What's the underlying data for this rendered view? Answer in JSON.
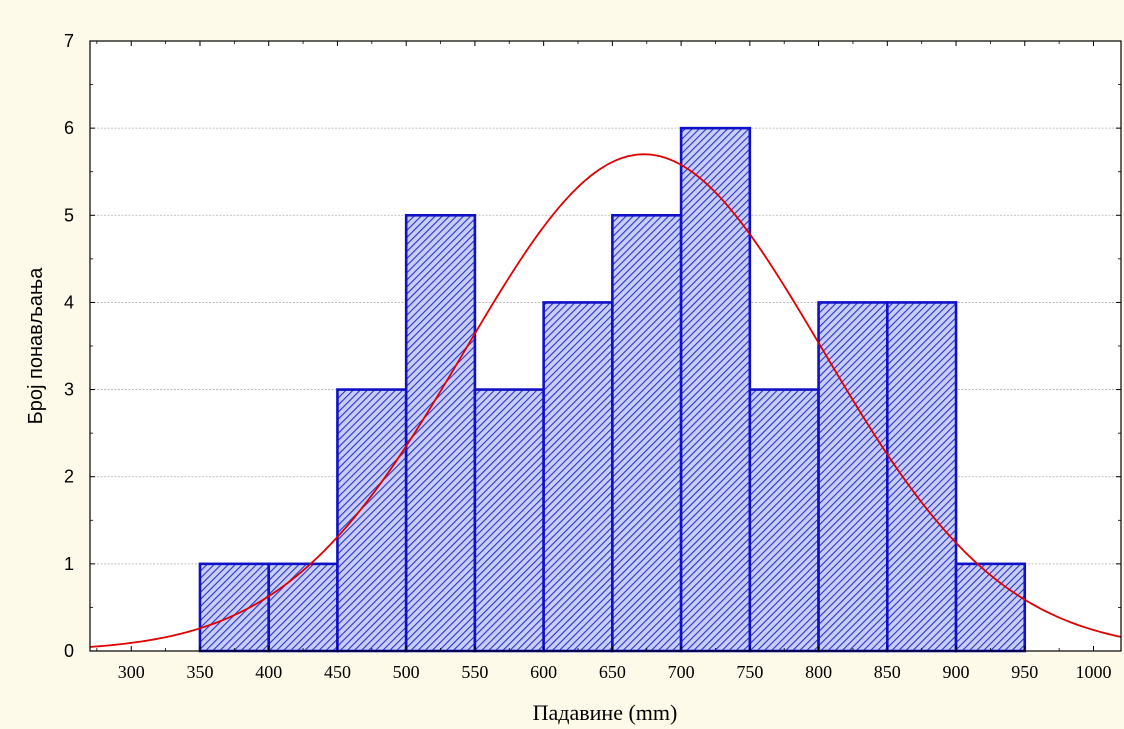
{
  "chart_data": {
    "type": "bar",
    "subtype": "histogram-with-normal-curve",
    "title": "",
    "xlabel": "Падавине (mm)",
    "ylabel": "Број понављања",
    "xlim": [
      270,
      1020
    ],
    "ylim": [
      0,
      7
    ],
    "x_ticks": [
      300,
      350,
      400,
      450,
      500,
      550,
      600,
      650,
      700,
      750,
      800,
      850,
      900,
      950,
      1000
    ],
    "y_ticks": [
      0,
      1,
      2,
      3,
      4,
      5,
      6,
      7
    ],
    "grid": true,
    "bins": [
      {
        "from": 350,
        "to": 400,
        "count": 1
      },
      {
        "from": 400,
        "to": 450,
        "count": 1
      },
      {
        "from": 450,
        "to": 500,
        "count": 3
      },
      {
        "from": 500,
        "to": 550,
        "count": 5
      },
      {
        "from": 550,
        "to": 600,
        "count": 3
      },
      {
        "from": 600,
        "to": 650,
        "count": 4
      },
      {
        "from": 650,
        "to": 700,
        "count": 5
      },
      {
        "from": 700,
        "to": 750,
        "count": 6
      },
      {
        "from": 750,
        "to": 800,
        "count": 3
      },
      {
        "from": 800,
        "to": 850,
        "count": 4
      },
      {
        "from": 850,
        "to": 900,
        "count": 4
      },
      {
        "from": 900,
        "to": 950,
        "count": 1
      }
    ],
    "normal_curve": {
      "mean": 673,
      "std": 130,
      "peak": 5.7
    },
    "colors": {
      "bar_fill": "#c8cef5",
      "bar_hatch": "#2a34c8",
      "bar_stroke": "#1010c8",
      "curve": "#e00000",
      "grid": "#b0b0b0",
      "plot_bg": "#ffffff",
      "page_bg": "#fdfaea"
    }
  }
}
